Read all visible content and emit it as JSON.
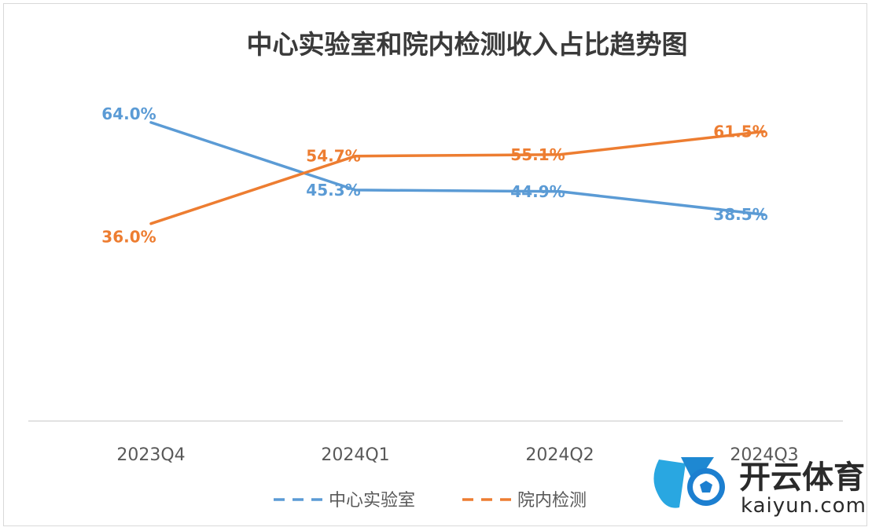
{
  "chart_data": {
    "type": "line",
    "title": "中心实验室和院内检测收入占比趋势图",
    "categories": [
      "2023Q4",
      "2024Q1",
      "2024Q2",
      "2024Q3"
    ],
    "series": [
      {
        "name": "中心实验室",
        "values": [
          64.0,
          45.3,
          44.9,
          38.5
        ],
        "labels": [
          "64.0%",
          "45.3%",
          "44.9%",
          "38.5%"
        ],
        "color": "#5b9bd5"
      },
      {
        "name": "院内检测",
        "values": [
          36.0,
          54.7,
          55.1,
          61.5
        ],
        "labels": [
          "36.0%",
          "54.7%",
          "55.1%",
          "61.5%"
        ],
        "color": "#ed7d31"
      }
    ],
    "legend_position": "bottom",
    "grid": false
  },
  "watermark": {
    "logo": "K-ball-logo",
    "text_cn": "开云体育",
    "text_en": "kaiyun.com"
  }
}
